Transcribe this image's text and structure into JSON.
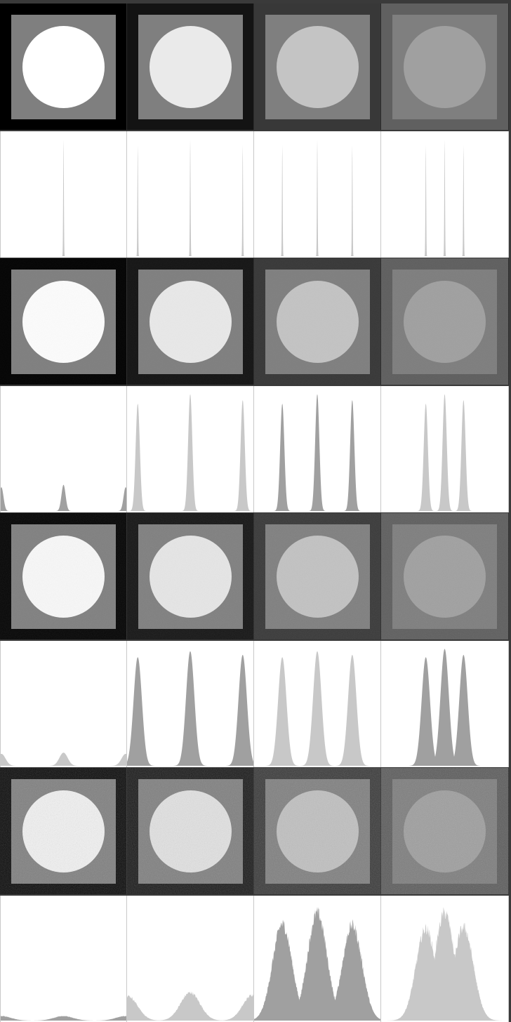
{
  "figure": {
    "rows": [
      {
        "kind": "tiles",
        "noise": 0,
        "tiles": [
          {
            "outer": "#000000",
            "plate": "#7f7f7f",
            "disc": "#ffffff"
          },
          {
            "outer": "#131313",
            "plate": "#7f7f7f",
            "disc": "#eaeaea"
          },
          {
            "outer": "#383838",
            "plate": "#7f7f7f",
            "disc": "#c4c4c4"
          },
          {
            "outer": "#606060",
            "plate": "#7f7f7f",
            "disc": "#a0a0a0"
          }
        ]
      },
      {
        "kind": "histogram",
        "width": 0.5,
        "panels": [
          {
            "peaks": [
              {
                "pos": 0.5,
                "h": 0.98,
                "color": "#c8c8c8"
              }
            ]
          },
          {
            "peaks": [
              {
                "pos": 0.08,
                "h": 0.93,
                "color": "#c8c8c8"
              },
              {
                "pos": 0.5,
                "h": 0.98,
                "color": "#c8c8c8"
              },
              {
                "pos": 0.92,
                "h": 0.93,
                "color": "#c8c8c8"
              }
            ]
          },
          {
            "peaks": [
              {
                "pos": 0.22,
                "h": 0.93,
                "color": "#c8c8c8"
              },
              {
                "pos": 0.5,
                "h": 0.98,
                "color": "#c8c8c8"
              },
              {
                "pos": 0.78,
                "h": 0.93,
                "color": "#c8c8c8"
              }
            ]
          },
          {
            "peaks": [
              {
                "pos": 0.35,
                "h": 0.93,
                "color": "#c8c8c8"
              },
              {
                "pos": 0.5,
                "h": 0.98,
                "color": "#c8c8c8"
              },
              {
                "pos": 0.65,
                "h": 0.93,
                "color": "#c8c8c8"
              }
            ]
          }
        ]
      },
      {
        "kind": "tiles",
        "noise": 0.05,
        "tiles": [
          {
            "outer": "#030303",
            "plate": "#7f7f7f",
            "disc": "#fbfbfb"
          },
          {
            "outer": "#151515",
            "plate": "#7f7f7f",
            "disc": "#e8e8e8"
          },
          {
            "outer": "#383838",
            "plate": "#7f7f7f",
            "disc": "#c3c3c3"
          },
          {
            "outer": "#5f5f5f",
            "plate": "#7e7e7e",
            "disc": "#a0a0a0"
          }
        ]
      },
      {
        "kind": "histogram",
        "width": 3,
        "panels": [
          {
            "peaks": [
              {
                "pos": 0.0,
                "h": 0.2,
                "color": "#a0a0a0"
              },
              {
                "pos": 0.5,
                "h": 0.22,
                "color": "#a0a0a0"
              },
              {
                "pos": 1.0,
                "h": 0.2,
                "color": "#a0a0a0"
              }
            ]
          },
          {
            "peaks": [
              {
                "pos": 0.08,
                "h": 0.9,
                "color": "#c8c8c8"
              },
              {
                "pos": 0.5,
                "h": 0.98,
                "color": "#c8c8c8"
              },
              {
                "pos": 0.92,
                "h": 0.93,
                "color": "#c8c8c8"
              }
            ]
          },
          {
            "peaks": [
              {
                "pos": 0.22,
                "h": 0.9,
                "color": "#a0a0a0"
              },
              {
                "pos": 0.5,
                "h": 0.98,
                "color": "#a0a0a0"
              },
              {
                "pos": 0.78,
                "h": 0.93,
                "color": "#a0a0a0"
              }
            ]
          },
          {
            "peaks": [
              {
                "pos": 0.35,
                "h": 0.9,
                "color": "#c8c8c8"
              },
              {
                "pos": 0.5,
                "h": 0.98,
                "color": "#c8c8c8"
              },
              {
                "pos": 0.65,
                "h": 0.93,
                "color": "#c8c8c8"
              }
            ]
          }
        ]
      },
      {
        "kind": "tiles",
        "noise": 0.12,
        "tiles": [
          {
            "outer": "#050505",
            "plate": "#7f7f7f",
            "disc": "#f8f8f8"
          },
          {
            "outer": "#161616",
            "plate": "#7f7f7f",
            "disc": "#e6e6e6"
          },
          {
            "outer": "#393939",
            "plate": "#7f7f7f",
            "disc": "#c2c2c2"
          },
          {
            "outer": "#5f5f5f",
            "plate": "#7e7e7e",
            "disc": "#a0a0a0"
          }
        ]
      },
      {
        "kind": "histogram",
        "width": 6,
        "panels": [
          {
            "peaks": [
              {
                "pos": 0.0,
                "h": 0.1,
                "color": "#c8c8c8"
              },
              {
                "pos": 0.5,
                "h": 0.11,
                "color": "#c8c8c8"
              },
              {
                "pos": 1.0,
                "h": 0.1,
                "color": "#c8c8c8"
              }
            ]
          },
          {
            "peaks": [
              {
                "pos": 0.08,
                "h": 0.91,
                "color": "#a0a0a0"
              },
              {
                "pos": 0.5,
                "h": 0.96,
                "color": "#a0a0a0"
              },
              {
                "pos": 0.92,
                "h": 0.93,
                "color": "#a0a0a0"
              }
            ]
          },
          {
            "peaks": [
              {
                "pos": 0.22,
                "h": 0.91,
                "color": "#c8c8c8"
              },
              {
                "pos": 0.5,
                "h": 0.96,
                "color": "#c8c8c8"
              },
              {
                "pos": 0.78,
                "h": 0.93,
                "color": "#c8c8c8"
              }
            ]
          },
          {
            "peaks": [
              {
                "pos": 0.35,
                "h": 0.91,
                "color": "#a0a0a0"
              },
              {
                "pos": 0.5,
                "h": 0.98,
                "color": "#a0a0a0"
              },
              {
                "pos": 0.65,
                "h": 0.93,
                "color": "#a0a0a0"
              }
            ]
          }
        ]
      },
      {
        "kind": "tiles",
        "noise": 0.28,
        "tiles": [
          {
            "outer": "#0a0a0a",
            "plate": "#7f7f7f",
            "disc": "#f2f2f2"
          },
          {
            "outer": "#1a1a1a",
            "plate": "#7f7f7f",
            "disc": "#e2e2e2"
          },
          {
            "outer": "#3a3a3a",
            "plate": "#7f7f7f",
            "disc": "#c0c0c0"
          },
          {
            "outer": "#5c5c5c",
            "plate": "#7d7d7d",
            "disc": "#9e9e9e"
          }
        ]
      },
      {
        "kind": "histogram",
        "width": 14,
        "jagged": true,
        "panels": [
          {
            "peaks": [
              {
                "pos": 0.0,
                "h": 0.04,
                "color": "#a0a0a0"
              },
              {
                "pos": 0.5,
                "h": 0.04,
                "color": "#a0a0a0"
              },
              {
                "pos": 1.0,
                "h": 0.04,
                "color": "#a0a0a0"
              }
            ]
          },
          {
            "peaks": [
              {
                "pos": 0.0,
                "h": 0.22,
                "color": "#c8c8c8"
              },
              {
                "pos": 0.5,
                "h": 0.25,
                "color": "#c8c8c8"
              },
              {
                "pos": 1.0,
                "h": 0.23,
                "color": "#c8c8c8"
              }
            ]
          },
          {
            "peaks": [
              {
                "pos": 0.22,
                "h": 0.86,
                "color": "#a0a0a0"
              },
              {
                "pos": 0.5,
                "h": 0.96,
                "color": "#a0a0a0"
              },
              {
                "pos": 0.78,
                "h": 0.85,
                "color": "#a0a0a0"
              }
            ]
          },
          {
            "peaks": [
              {
                "pos": 0.35,
                "h": 0.82,
                "color": "#c8c8c8"
              },
              {
                "pos": 0.5,
                "h": 0.96,
                "color": "#c8c8c8"
              },
              {
                "pos": 0.65,
                "h": 0.83,
                "color": "#c8c8c8"
              }
            ]
          }
        ]
      }
    ]
  }
}
